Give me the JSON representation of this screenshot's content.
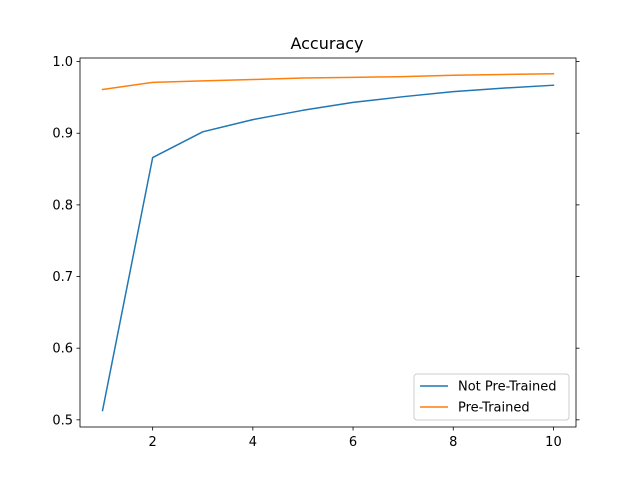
{
  "chart_data": {
    "type": "line",
    "title": "Accuracy",
    "xlabel": "",
    "ylabel": "",
    "x": [
      1,
      2,
      3,
      4,
      5,
      6,
      7,
      8,
      9,
      10
    ],
    "xlim": [
      0.55,
      10.45
    ],
    "ylim": [
      0.49,
      1.005
    ],
    "xticks": [
      2,
      4,
      6,
      8,
      10
    ],
    "yticks": [
      0.5,
      0.6,
      0.7,
      0.8,
      0.9,
      1.0
    ],
    "ytick_labels": [
      "0.5",
      "0.6",
      "0.7",
      "0.8",
      "0.9",
      "1.0"
    ],
    "xtick_labels": [
      "2",
      "4",
      "6",
      "8",
      "10"
    ],
    "grid": false,
    "legend_position": "lower-right",
    "series": [
      {
        "name": "Not Pre-Trained",
        "color": "#1f77b4",
        "values": [
          0.513,
          0.866,
          0.902,
          0.919,
          0.932,
          0.943,
          0.951,
          0.958,
          0.963,
          0.967
        ]
      },
      {
        "name": "Pre-Trained",
        "color": "#ff7f0e",
        "values": [
          0.961,
          0.971,
          0.973,
          0.975,
          0.977,
          0.978,
          0.979,
          0.981,
          0.982,
          0.983
        ]
      }
    ]
  }
}
